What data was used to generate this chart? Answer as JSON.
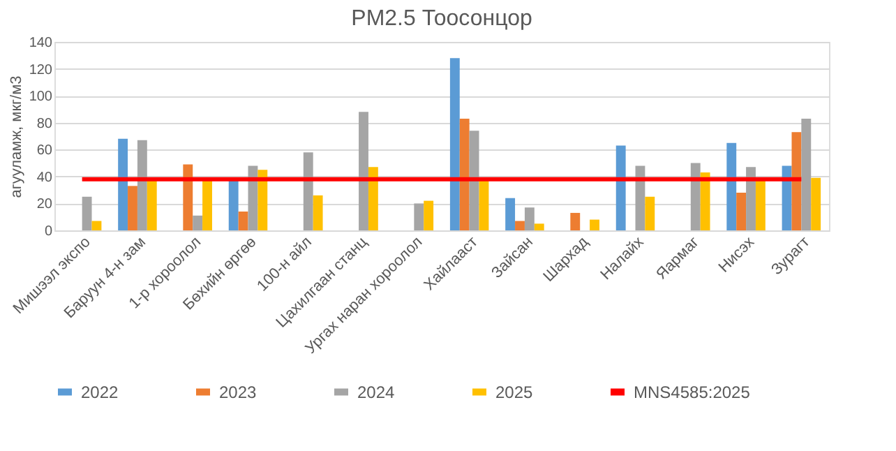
{
  "chart_data": {
    "type": "bar",
    "title": "PM2.5 Тоосонцор",
    "ylabel": "агууламж, мкг/м3",
    "categories": [
      "Мишээл экспо",
      "Баруун 4-н зам",
      "1-р хороолол",
      "Бөхийн өргөө",
      "100-н айл",
      "Цахилгаан станц",
      "Ургах наран хороолол",
      "Хайлааст",
      "Зайсан",
      "Шархад",
      "Налайх",
      "Яармаг",
      "Нисэх",
      "Зурагт"
    ],
    "series": [
      {
        "name": "2022",
        "color": "#5b9bd5",
        "values": [
          null,
          68,
          null,
          37,
          null,
          null,
          null,
          128,
          24,
          null,
          63,
          null,
          65,
          48
        ]
      },
      {
        "name": "2023",
        "color": "#ed7d31",
        "values": [
          null,
          33,
          49,
          14,
          null,
          null,
          null,
          83,
          7,
          13,
          null,
          null,
          28,
          73
        ]
      },
      {
        "name": "2024",
        "color": "#a5a5a5",
        "values": [
          25,
          67,
          11,
          48,
          58,
          88,
          20,
          74,
          17,
          null,
          48,
          50,
          47,
          83
        ]
      },
      {
        "name": "2025",
        "color": "#ffc000",
        "values": [
          7,
          38,
          38,
          45,
          26,
          47,
          22,
          37,
          5,
          8,
          25,
          43,
          38,
          39
        ]
      },
      {
        "name": "MNS4585:2025",
        "color": "#ff0000",
        "type": "line",
        "values": [
          38,
          38,
          38,
          38,
          38,
          38,
          38,
          38,
          38,
          38,
          38,
          38,
          38,
          38
        ]
      }
    ],
    "ylim": [
      0,
      140
    ],
    "yticks": [
      0,
      20,
      40,
      60,
      80,
      100,
      120,
      140
    ],
    "grid": "y",
    "legend": "bottom"
  }
}
